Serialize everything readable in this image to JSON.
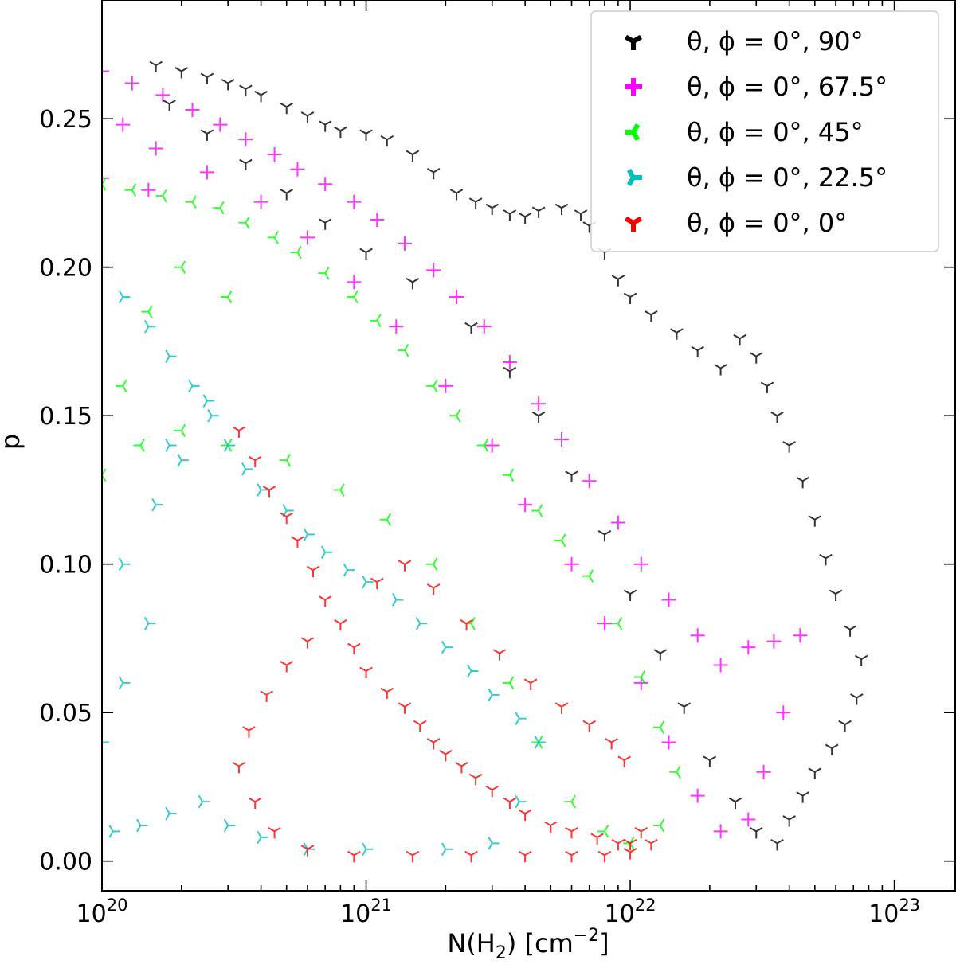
{
  "chart_data": {
    "type": "scatter",
    "title": "",
    "xlabel": "N(H",
    "xlabel_sub": "2",
    "xlabel_unit": ") [cm",
    "xlabel_exp": "−2",
    "xlabel_close": "]",
    "ylabel": "p",
    "xscale": "log",
    "xlim": [
      1e+20,
      1.7e+23
    ],
    "ylim": [
      -0.01,
      0.29
    ],
    "grid": false,
    "legend_position": "top-right",
    "x_ticks": [
      {
        "base": "10",
        "exp": "20",
        "value": 1e+20
      },
      {
        "base": "10",
        "exp": "21",
        "value": 1e+21
      },
      {
        "base": "10",
        "exp": "22",
        "value": 1e+22
      },
      {
        "base": "10",
        "exp": "23",
        "value": 1e+23
      }
    ],
    "y_ticks": [
      {
        "label": "0.00",
        "value": 0.0
      },
      {
        "label": "0.05",
        "value": 0.05
      },
      {
        "label": "0.10",
        "value": 0.1
      },
      {
        "label": "0.15",
        "value": 0.15
      },
      {
        "label": "0.20",
        "value": 0.2
      },
      {
        "label": "0.25",
        "value": 0.25
      }
    ],
    "series": [
      {
        "name": "θ, ϕ = 0$^\\circ$, 90$^\\circ$",
        "legend": "θ, ϕ = 0°, 90°",
        "color": "#000000",
        "marker": "tri_down",
        "points": [
          [
            1.6e+20,
            0.268
          ],
          [
            2e+20,
            0.266
          ],
          [
            2.5e+20,
            0.264
          ],
          [
            3e+20,
            0.262
          ],
          [
            3.5e+20,
            0.26
          ],
          [
            4e+20,
            0.258
          ],
          [
            5e+20,
            0.254
          ],
          [
            6e+20,
            0.251
          ],
          [
            7e+20,
            0.248
          ],
          [
            8e+20,
            0.246
          ],
          [
            1e+21,
            0.245
          ],
          [
            1.2e+21,
            0.243
          ],
          [
            1.5e+21,
            0.238
          ],
          [
            1.8e+21,
            0.232
          ],
          [
            2.2e+21,
            0.225
          ],
          [
            2.6e+21,
            0.222
          ],
          [
            3e+21,
            0.22
          ],
          [
            3.5e+21,
            0.218
          ],
          [
            4e+21,
            0.217
          ],
          [
            4.5e+21,
            0.219
          ],
          [
            5.5e+21,
            0.22
          ],
          [
            6.5e+21,
            0.218
          ],
          [
            7e+21,
            0.214
          ],
          [
            8e+21,
            0.205
          ],
          [
            9e+21,
            0.196
          ],
          [
            1e+22,
            0.19
          ],
          [
            1.2e+22,
            0.184
          ],
          [
            1.5e+22,
            0.178
          ],
          [
            1.8e+22,
            0.172
          ],
          [
            2.2e+22,
            0.166
          ],
          [
            2.6e+22,
            0.176
          ],
          [
            3e+22,
            0.17
          ],
          [
            3.3e+22,
            0.16
          ],
          [
            3.6e+22,
            0.15
          ],
          [
            4e+22,
            0.14
          ],
          [
            4.5e+22,
            0.128
          ],
          [
            5e+22,
            0.115
          ],
          [
            5.5e+22,
            0.102
          ],
          [
            6e+22,
            0.09
          ],
          [
            6.8e+22,
            0.078
          ],
          [
            7.5e+22,
            0.068
          ],
          [
            7.2e+22,
            0.055
          ],
          [
            6.5e+22,
            0.046
          ],
          [
            5.8e+22,
            0.038
          ],
          [
            5e+22,
            0.03
          ],
          [
            4.5e+22,
            0.022
          ],
          [
            4e+22,
            0.014
          ],
          [
            3.6e+22,
            0.006
          ],
          [
            3e+22,
            0.01
          ],
          [
            2.5e+22,
            0.02
          ],
          [
            2e+22,
            0.034
          ],
          [
            1.6e+22,
            0.052
          ],
          [
            1.3e+22,
            0.07
          ],
          [
            1e+22,
            0.09
          ],
          [
            8e+21,
            0.11
          ],
          [
            6e+21,
            0.13
          ],
          [
            4.5e+21,
            0.15
          ],
          [
            3.5e+21,
            0.165
          ],
          [
            2.5e+21,
            0.18
          ],
          [
            1.5e+21,
            0.195
          ],
          [
            1e+21,
            0.205
          ],
          [
            7e+20,
            0.215
          ],
          [
            5e+20,
            0.225
          ],
          [
            3.5e+20,
            0.235
          ],
          [
            2.5e+20,
            0.245
          ],
          [
            1.8e+20,
            0.255
          ]
        ]
      },
      {
        "name": "θ, ϕ = 0$^\\circ$, 67.5$^\\circ$",
        "legend": "θ, ϕ = 0°, 67.5°",
        "color": "#ff00ff",
        "marker": "plus",
        "points": [
          [
            1e+20,
            0.266
          ],
          [
            1.3e+20,
            0.262
          ],
          [
            1.7e+20,
            0.258
          ],
          [
            2.2e+20,
            0.253
          ],
          [
            2.8e+20,
            0.248
          ],
          [
            3.5e+20,
            0.243
          ],
          [
            4.5e+20,
            0.238
          ],
          [
            5.5e+20,
            0.233
          ],
          [
            7e+20,
            0.228
          ],
          [
            9e+20,
            0.222
          ],
          [
            1.1e+21,
            0.216
          ],
          [
            1.4e+21,
            0.208
          ],
          [
            1.8e+21,
            0.199
          ],
          [
            2.2e+21,
            0.19
          ],
          [
            2.8e+21,
            0.18
          ],
          [
            3.5e+21,
            0.168
          ],
          [
            4.5e+21,
            0.154
          ],
          [
            5.5e+21,
            0.142
          ],
          [
            7e+21,
            0.128
          ],
          [
            9e+21,
            0.114
          ],
          [
            1.1e+22,
            0.1
          ],
          [
            1.4e+22,
            0.088
          ],
          [
            1.8e+22,
            0.076
          ],
          [
            2.2e+22,
            0.066
          ],
          [
            2.8e+22,
            0.072
          ],
          [
            3.5e+22,
            0.074
          ],
          [
            4.4e+22,
            0.076
          ],
          [
            3.8e+22,
            0.05
          ],
          [
            3.2e+22,
            0.03
          ],
          [
            2.8e+22,
            0.014
          ],
          [
            2.2e+22,
            0.01
          ],
          [
            1.8e+22,
            0.022
          ],
          [
            1.4e+22,
            0.04
          ],
          [
            1.1e+22,
            0.06
          ],
          [
            8e+21,
            0.08
          ],
          [
            6e+21,
            0.1
          ],
          [
            4e+21,
            0.12
          ],
          [
            3e+21,
            0.14
          ],
          [
            2e+21,
            0.16
          ],
          [
            1.3e+21,
            0.18
          ],
          [
            9e+20,
            0.195
          ],
          [
            6e+20,
            0.21
          ],
          [
            4e+20,
            0.222
          ],
          [
            2.5e+20,
            0.232
          ],
          [
            1.6e+20,
            0.24
          ],
          [
            1.2e+20,
            0.248
          ],
          [
            1e+20,
            0.23
          ],
          [
            1.5e+20,
            0.226
          ]
        ]
      },
      {
        "name": "θ, ϕ = 0$^\\circ$, 45$^\\circ$",
        "legend": "θ, ϕ = 0°, 45°",
        "color": "#00ff00",
        "marker": "tri_right",
        "points": [
          [
            1e+20,
            0.228
          ],
          [
            1.3e+20,
            0.226
          ],
          [
            1.7e+20,
            0.224
          ],
          [
            2.2e+20,
            0.222
          ],
          [
            2.8e+20,
            0.22
          ],
          [
            3.5e+20,
            0.215
          ],
          [
            4.5e+20,
            0.21
          ],
          [
            5.5e+20,
            0.205
          ],
          [
            7e+20,
            0.198
          ],
          [
            9e+20,
            0.19
          ],
          [
            1.1e+21,
            0.182
          ],
          [
            1.4e+21,
            0.172
          ],
          [
            1.8e+21,
            0.16
          ],
          [
            2.2e+21,
            0.15
          ],
          [
            2.8e+21,
            0.14
          ],
          [
            3.5e+21,
            0.13
          ],
          [
            4.5e+21,
            0.118
          ],
          [
            5.5e+21,
            0.108
          ],
          [
            7e+21,
            0.096
          ],
          [
            9e+21,
            0.08
          ],
          [
            1.1e+22,
            0.062
          ],
          [
            1.3e+22,
            0.045
          ],
          [
            1.5e+22,
            0.03
          ],
          [
            1.3e+22,
            0.012
          ],
          [
            1e+22,
            0.006
          ],
          [
            8e+21,
            0.01
          ],
          [
            6e+21,
            0.02
          ],
          [
            4.5e+21,
            0.04
          ],
          [
            3.5e+21,
            0.06
          ],
          [
            2.5e+21,
            0.08
          ],
          [
            1.8e+21,
            0.1
          ],
          [
            1.2e+21,
            0.115
          ],
          [
            8e+20,
            0.125
          ],
          [
            5e+20,
            0.135
          ],
          [
            3e+20,
            0.14
          ],
          [
            2e+20,
            0.145
          ],
          [
            1.4e+20,
            0.14
          ],
          [
            1e+20,
            0.13
          ],
          [
            1.2e+20,
            0.16
          ],
          [
            1.5e+20,
            0.185
          ],
          [
            2e+20,
            0.2
          ],
          [
            3e+20,
            0.19
          ]
        ]
      },
      {
        "name": "θ, ϕ = 0$^\\circ$, 22.5$^\\circ$",
        "legend": "θ, ϕ = 0°, 22.5°",
        "color": "#00bfbf",
        "marker": "tri_left",
        "points": [
          [
            1e+20,
            0.2
          ],
          [
            1.2e+20,
            0.19
          ],
          [
            1.5e+20,
            0.18
          ],
          [
            1.8e+20,
            0.17
          ],
          [
            2.2e+20,
            0.16
          ],
          [
            2.6e+20,
            0.15
          ],
          [
            3e+20,
            0.14
          ],
          [
            3.5e+20,
            0.132
          ],
          [
            4e+20,
            0.125
          ],
          [
            5e+20,
            0.118
          ],
          [
            6e+20,
            0.11
          ],
          [
            7e+20,
            0.104
          ],
          [
            8.5e+20,
            0.098
          ],
          [
            1e+21,
            0.094
          ],
          [
            1.3e+21,
            0.088
          ],
          [
            1.6e+21,
            0.08
          ],
          [
            2e+21,
            0.072
          ],
          [
            2.5e+21,
            0.064
          ],
          [
            3e+21,
            0.056
          ],
          [
            3.8e+21,
            0.048
          ],
          [
            4.5e+21,
            0.04
          ],
          [
            3.8e+21,
            0.02
          ],
          [
            3e+21,
            0.006
          ],
          [
            2e+21,
            0.004
          ],
          [
            1e+21,
            0.004
          ],
          [
            6e+20,
            0.004
          ],
          [
            4e+20,
            0.008
          ],
          [
            3e+20,
            0.012
          ],
          [
            2.4e+20,
            0.02
          ],
          [
            1.8e+20,
            0.016
          ],
          [
            1.4e+20,
            0.012
          ],
          [
            1.1e+20,
            0.01
          ],
          [
            1e+20,
            0.04
          ],
          [
            1.2e+20,
            0.06
          ],
          [
            1.5e+20,
            0.08
          ],
          [
            1.2e+20,
            0.1
          ],
          [
            1.6e+20,
            0.12
          ],
          [
            2e+20,
            0.135
          ],
          [
            2.5e+20,
            0.155
          ],
          [
            1.8e+20,
            0.14
          ]
        ]
      },
      {
        "name": "θ, ϕ = 0$^\\circ$, 0$^\\circ$",
        "legend": "θ, ϕ = 0°, 0°",
        "color": "#ff0000",
        "marker": "tri_up",
        "points": [
          [
            3.3e+20,
            0.145
          ],
          [
            3.8e+20,
            0.135
          ],
          [
            4.3e+20,
            0.125
          ],
          [
            5e+20,
            0.116
          ],
          [
            5.5e+20,
            0.108
          ],
          [
            6.3e+20,
            0.098
          ],
          [
            7e+20,
            0.088
          ],
          [
            8e+20,
            0.08
          ],
          [
            9e+20,
            0.072
          ],
          [
            1e+21,
            0.064
          ],
          [
            1.2e+21,
            0.057
          ],
          [
            1.4e+21,
            0.052
          ],
          [
            1.6e+21,
            0.046
          ],
          [
            1.8e+21,
            0.04
          ],
          [
            2e+21,
            0.036
          ],
          [
            2.3e+21,
            0.032
          ],
          [
            2.6e+21,
            0.028
          ],
          [
            3e+21,
            0.024
          ],
          [
            3.5e+21,
            0.02
          ],
          [
            4e+21,
            0.016
          ],
          [
            5e+21,
            0.012
          ],
          [
            6e+21,
            0.01
          ],
          [
            7.5e+21,
            0.008
          ],
          [
            9e+21,
            0.006
          ],
          [
            1e+22,
            0.006
          ],
          [
            1.1e+22,
            0.01
          ],
          [
            1.2e+22,
            0.006
          ],
          [
            1e+22,
            0.003
          ],
          [
            8e+21,
            0.002
          ],
          [
            6e+21,
            0.002
          ],
          [
            4e+21,
            0.002
          ],
          [
            2.5e+21,
            0.002
          ],
          [
            1.5e+21,
            0.002
          ],
          [
            9e+20,
            0.002
          ],
          [
            6e+20,
            0.004
          ],
          [
            4.5e+20,
            0.01
          ],
          [
            3.8e+20,
            0.02
          ],
          [
            3.3e+20,
            0.032
          ],
          [
            3.6e+20,
            0.044
          ],
          [
            4.2e+20,
            0.056
          ],
          [
            5e+20,
            0.066
          ],
          [
            6e+20,
            0.074
          ],
          [
            1.1e+21,
            0.094
          ],
          [
            1.4e+21,
            0.1
          ],
          [
            1.8e+21,
            0.092
          ],
          [
            2.4e+21,
            0.08
          ],
          [
            3.2e+21,
            0.07
          ],
          [
            4.2e+21,
            0.06
          ],
          [
            5.5e+21,
            0.052
          ],
          [
            7e+21,
            0.046
          ],
          [
            8.5e+21,
            0.04
          ],
          [
            9.5e+21,
            0.034
          ]
        ]
      }
    ]
  }
}
